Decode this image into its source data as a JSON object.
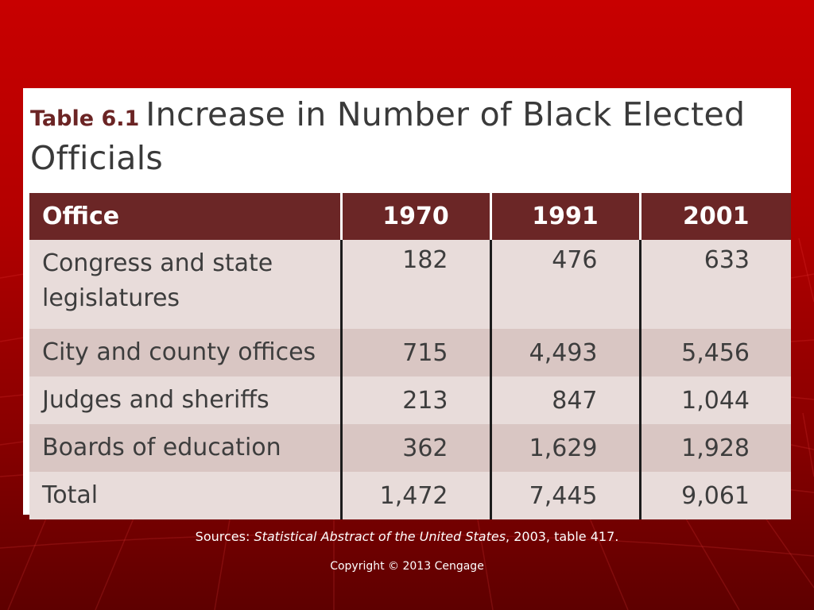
{
  "table": {
    "number": "Table 6.1",
    "title_line1": "Increase in Number of Black Elected",
    "title_line2": "Officials",
    "columns": [
      "Office",
      "1970",
      "1991",
      "2001"
    ],
    "rows": [
      {
        "office_l1": "Congress and state",
        "office_l2": "legislatures",
        "v1970": "182",
        "v1991": "476",
        "v2001": "633"
      },
      {
        "office": "City and county offices",
        "v1970": "715",
        "v1991": "4,493",
        "v2001": "5,456"
      },
      {
        "office": "Judges and sheriffs",
        "v1970": "213",
        "v1991": "847",
        "v2001": "1,044"
      },
      {
        "office": "Boards of education",
        "v1970": "362",
        "v1991": "1,629",
        "v2001": "1,928"
      },
      {
        "office": "Total",
        "v1970": "1,472",
        "v1991": "7,445",
        "v2001": "9,061"
      }
    ]
  },
  "footer": {
    "source_prefix": "Sources: ",
    "source_title": "Statistical Abstract of the United States",
    "source_suffix": ", 2003, table 417.",
    "copyright": "Copyright © 2013 Cengage"
  },
  "colors": {
    "background": "#c00000",
    "header_fill": "#6b2626",
    "row_light": "#e8dcda",
    "row_dark": "#d9c6c3"
  }
}
